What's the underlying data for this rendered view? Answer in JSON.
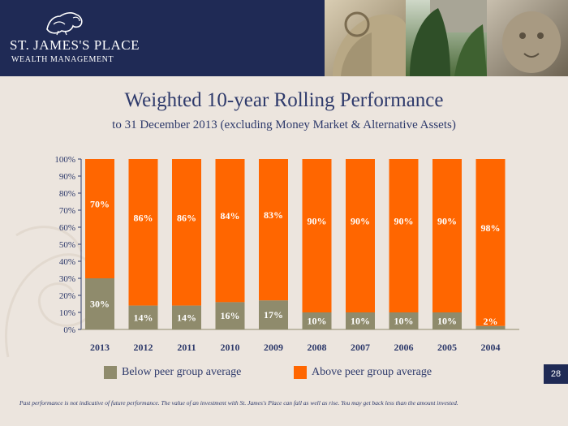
{
  "brand": {
    "name": "ST. JAMES'S PLACE",
    "sub": "WEALTH MANAGEMENT"
  },
  "title": "Weighted 10-year Rolling Performance",
  "subtitle": "to 31 December 2013 (excluding Money Market & Alternative Assets)",
  "legend": {
    "below": "Below peer group average",
    "above": "Above peer group average"
  },
  "page_number": "28",
  "disclaimer": "Past performance is not indicative of future performance.  The value of an investment with St. James's Place can fall as well as rise.  You may get back less than the amount invested.",
  "colors": {
    "header": "#1f2a55",
    "below": "#8f8b6c",
    "above": "#ff6600",
    "text": "#2e3a6b"
  },
  "chart_data": {
    "type": "bar",
    "stacked": true,
    "categories": [
      "2013",
      "2012",
      "2011",
      "2010",
      "2009",
      "2008",
      "2007",
      "2006",
      "2005",
      "2004"
    ],
    "series": [
      {
        "name": "Below peer group average",
        "values": [
          30,
          14,
          14,
          16,
          17,
          10,
          10,
          10,
          10,
          2
        ]
      },
      {
        "name": "Above peer group average",
        "values": [
          70,
          86,
          86,
          84,
          83,
          90,
          90,
          90,
          90,
          98
        ]
      }
    ],
    "value_labels": {
      "below": [
        "30%",
        "14%",
        "14%",
        "16%",
        "17%",
        "10%",
        "10%",
        "10%",
        "10%",
        "2%"
      ],
      "above": [
        "70%",
        "86%",
        "86%",
        "84%",
        "83%",
        "90%",
        "90%",
        "90%",
        "90%",
        "98%"
      ]
    },
    "yticks": [
      "0%",
      "10%",
      "20%",
      "30%",
      "40%",
      "50%",
      "60%",
      "70%",
      "80%",
      "90%",
      "100%"
    ],
    "ylim": [
      0,
      100
    ],
    "grid": false,
    "legend_position": "bottom"
  }
}
